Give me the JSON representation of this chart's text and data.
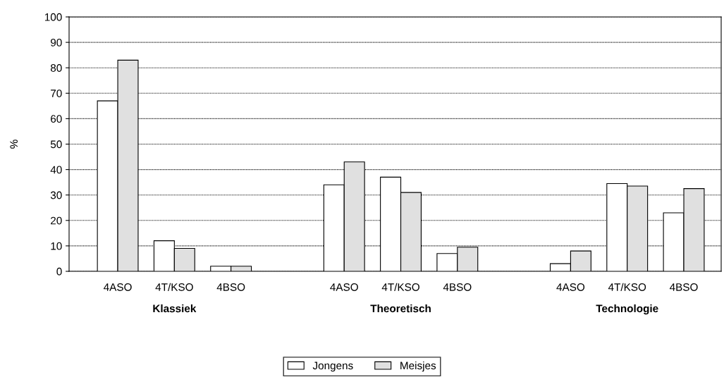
{
  "chart_data": {
    "type": "bar",
    "ylabel": "%",
    "categories": [
      "4ASO",
      "4T/KSO",
      "4BSO",
      null,
      "4ASO",
      "4T/KSO",
      "4BSO",
      null,
      "4ASO",
      "4T/KSO",
      "4BSO"
    ],
    "series": [
      {
        "name": "Jongens",
        "color": "#ffffff",
        "values": [
          67,
          12,
          2,
          null,
          34,
          37,
          7,
          null,
          3,
          34.5,
          23
        ]
      },
      {
        "name": "Meisjes",
        "color": "#e0e0e0",
        "values": [
          83,
          9,
          2,
          null,
          43,
          31,
          9.5,
          null,
          8,
          33.5,
          32.5
        ]
      }
    ],
    "annotations": [
      "Klassiek",
      "Theoretisch",
      "Technologie"
    ],
    "ylim": [
      0,
      100
    ],
    "yticks": [
      0,
      10,
      20,
      30,
      40,
      50,
      60,
      70,
      80,
      90,
      100
    ],
    "grid": "y",
    "legend": "bottom"
  }
}
